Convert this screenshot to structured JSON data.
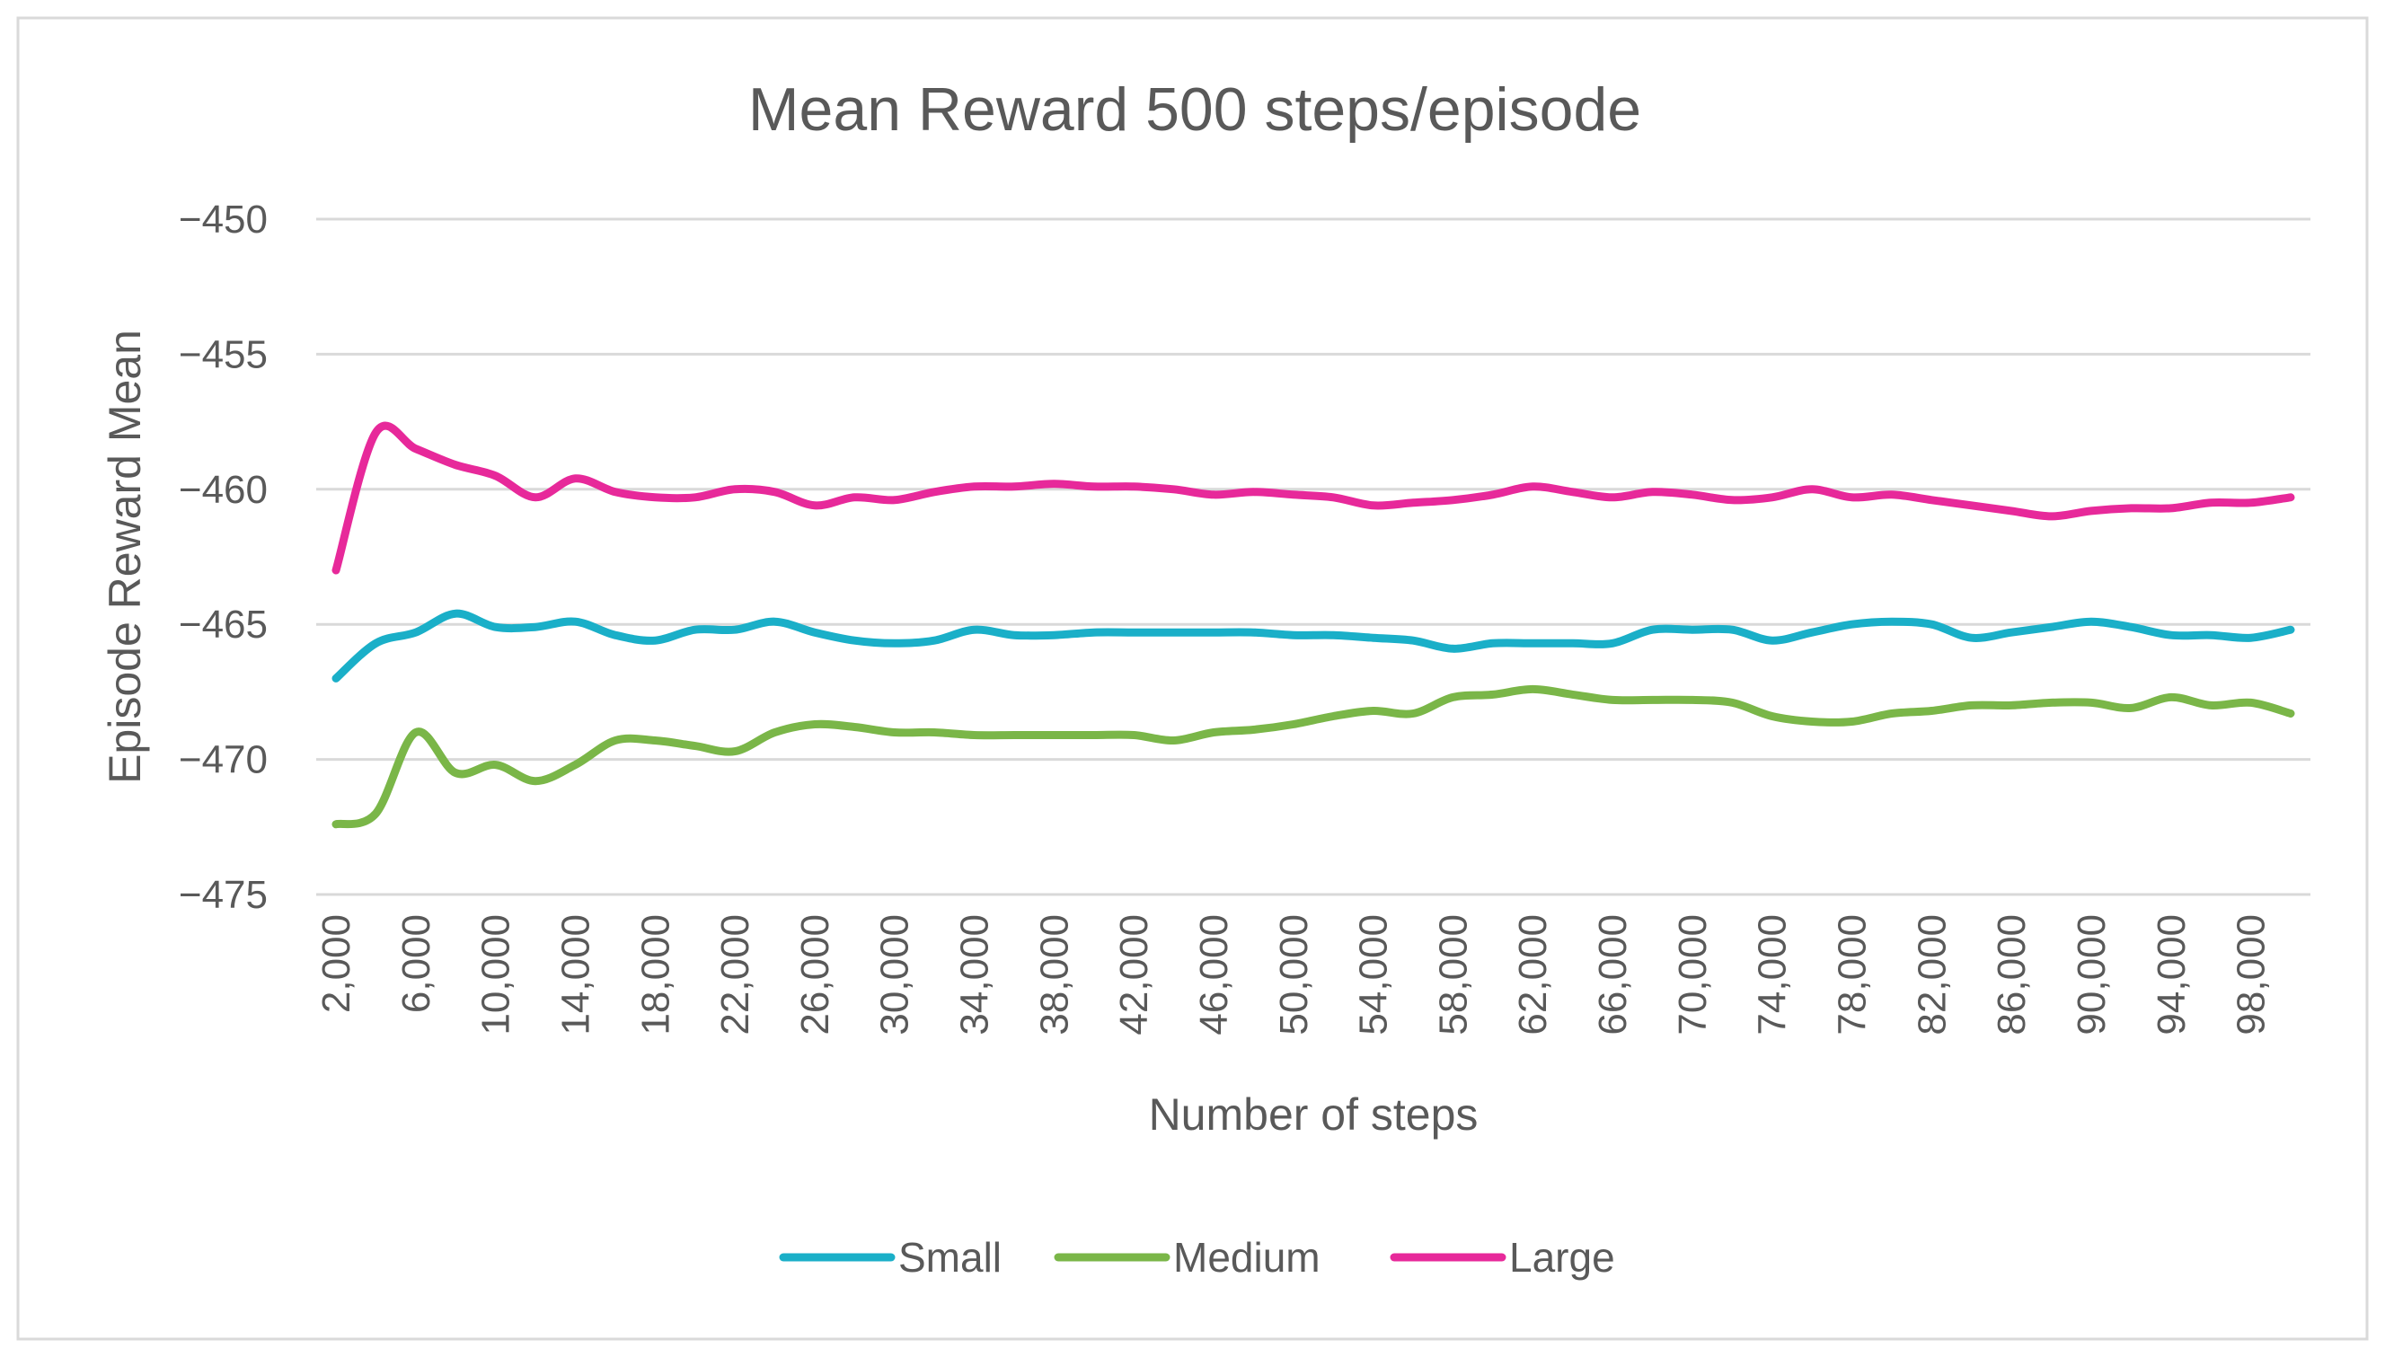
{
  "chart_data": {
    "type": "line",
    "title": "Mean Reward 500 steps/episode",
    "xlabel": "Number of steps",
    "ylabel": "Episode Reward Mean",
    "ylim": [
      -475,
      -450
    ],
    "yticks": [
      -450,
      -455,
      -460,
      -465,
      -470,
      -475
    ],
    "ytick_labels": [
      "−450",
      "−455",
      "−460",
      "−465",
      "−470",
      "−475"
    ],
    "xlim": [
      2000,
      100000
    ],
    "xticks": [
      2000,
      6000,
      10000,
      14000,
      18000,
      22000,
      26000,
      30000,
      34000,
      38000,
      42000,
      46000,
      50000,
      54000,
      58000,
      62000,
      66000,
      70000,
      74000,
      78000,
      82000,
      86000,
      90000,
      94000,
      98000
    ],
    "xtick_labels": [
      "2,000",
      "6,000",
      "10,000",
      "14,000",
      "18,000",
      "22,000",
      "26,000",
      "30,000",
      "34,000",
      "38,000",
      "42,000",
      "46,000",
      "50,000",
      "54,000",
      "58,000",
      "62,000",
      "66,000",
      "70,000",
      "74,000",
      "78,000",
      "82,000",
      "86,000",
      "90,000",
      "94,000",
      "98,000"
    ],
    "grid": true,
    "legend_position": "bottom",
    "x": [
      2000,
      4000,
      6000,
      8000,
      10000,
      12000,
      14000,
      16000,
      18000,
      20000,
      22000,
      24000,
      26000,
      28000,
      30000,
      32000,
      34000,
      36000,
      38000,
      40000,
      42000,
      44000,
      46000,
      48000,
      50000,
      52000,
      54000,
      56000,
      58000,
      60000,
      62000,
      64000,
      66000,
      68000,
      70000,
      72000,
      74000,
      76000,
      78000,
      80000,
      82000,
      84000,
      86000,
      88000,
      90000,
      92000,
      94000,
      96000,
      98000,
      100000
    ],
    "series": [
      {
        "name": "Small",
        "color": "#1AAFC8",
        "values": [
          -467.0,
          -465.7,
          -465.3,
          -464.6,
          -465.1,
          -465.1,
          -464.9,
          -465.4,
          -465.6,
          -465.2,
          -465.2,
          -464.9,
          -465.3,
          -465.6,
          -465.7,
          -465.6,
          -465.2,
          -465.4,
          -465.4,
          -465.3,
          -465.3,
          -465.3,
          -465.3,
          -465.3,
          -465.4,
          -465.4,
          -465.5,
          -465.6,
          -465.9,
          -465.7,
          -465.7,
          -465.7,
          -465.7,
          -465.2,
          -465.2,
          -465.2,
          -465.6,
          -465.3,
          -465.0,
          -464.9,
          -465.0,
          -465.5,
          -465.3,
          -465.1,
          -464.9,
          -465.1,
          -465.4,
          -465.4,
          -465.5,
          -465.2
        ]
      },
      {
        "name": "Medium",
        "color": "#7AB648",
        "values": [
          -472.4,
          -472.0,
          -469.0,
          -470.5,
          -470.2,
          -470.8,
          -470.2,
          -469.3,
          -469.3,
          -469.5,
          -469.7,
          -469.0,
          -468.7,
          -468.8,
          -469.0,
          -469.0,
          -469.1,
          -469.1,
          -469.1,
          -469.1,
          -469.1,
          -469.3,
          -469.0,
          -468.9,
          -468.7,
          -468.4,
          -468.2,
          -468.3,
          -467.7,
          -467.6,
          -467.4,
          -467.6,
          -467.8,
          -467.8,
          -467.8,
          -467.9,
          -468.4,
          -468.6,
          -468.6,
          -468.3,
          -468.2,
          -468.0,
          -468.0,
          -467.9,
          -467.9,
          -468.1,
          -467.7,
          -468.0,
          -467.9,
          -468.3
        ]
      },
      {
        "name": "Large",
        "color": "#E7299A",
        "values": [
          -463.0,
          -457.9,
          -458.5,
          -459.1,
          -459.5,
          -460.3,
          -459.6,
          -460.1,
          -460.3,
          -460.3,
          -460.0,
          -460.1,
          -460.6,
          -460.3,
          -460.4,
          -460.1,
          -459.9,
          -459.9,
          -459.8,
          -459.9,
          -459.9,
          -460.0,
          -460.2,
          -460.1,
          -460.2,
          -460.3,
          -460.6,
          -460.5,
          -460.4,
          -460.2,
          -459.9,
          -460.1,
          -460.3,
          -460.1,
          -460.2,
          -460.4,
          -460.3,
          -460.0,
          -460.3,
          -460.2,
          -460.4,
          -460.6,
          -460.8,
          -461.0,
          -460.8,
          -460.7,
          -460.7,
          -460.5,
          -460.5,
          -460.3
        ]
      }
    ]
  },
  "colors": {
    "grid": "#D9D9D9",
    "border": "#D9D9D9",
    "text": "#595959"
  }
}
